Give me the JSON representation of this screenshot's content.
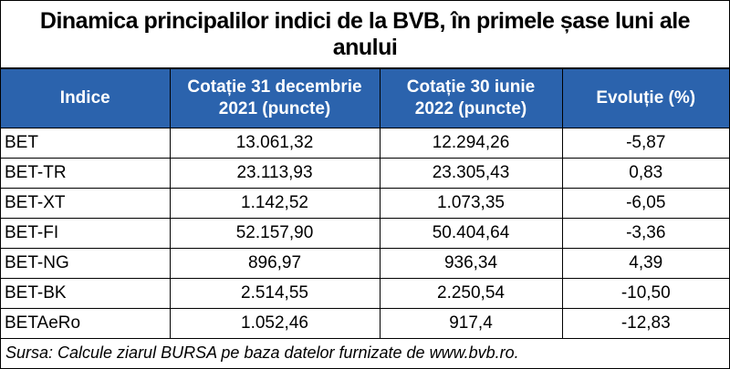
{
  "header": {
    "title": "Dinamica principalilor indici de la BVB, în primele șase luni ale anului"
  },
  "table": {
    "columns": [
      "Indice",
      "Cotație 31 decembrie 2021 (puncte)",
      "Cotație 30 iunie 2022 (puncte)",
      "Evoluție (%)"
    ],
    "rows": [
      [
        "BET",
        "13.061,32",
        "12.294,26",
        "-5,87"
      ],
      [
        "BET-TR",
        "23.113,93",
        "23.305,43",
        "0,83"
      ],
      [
        "BET-XT",
        "1.142,52",
        "1.073,35",
        "-6,05"
      ],
      [
        "BET-FI",
        "52.157,90",
        "50.404,64",
        "-3,36"
      ],
      [
        "BET-NG",
        "896,97",
        "936,34",
        "4,39"
      ],
      [
        "BET-BK",
        "2.514,55",
        "2.250,54",
        "-10,50"
      ],
      [
        "BETAeRo",
        "1.052,46",
        "917,4",
        "-12,83"
      ]
    ]
  },
  "footer": {
    "source": "Sursa: Calcule ziarul BURSA pe baza datelor furnizate de www.bvb.ro."
  }
}
